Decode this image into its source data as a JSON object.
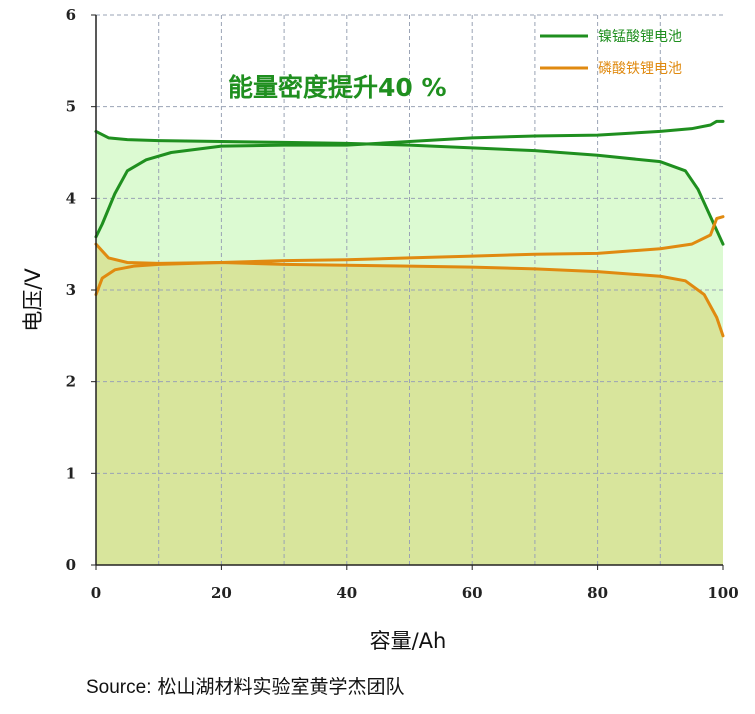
{
  "chart_data": {
    "type": "line",
    "xlabel": "容量/Ah",
    "ylabel": "电压/V",
    "xlim": [
      0,
      100
    ],
    "ylim": [
      0,
      6
    ],
    "x_ticks": [
      0,
      20,
      40,
      60,
      80,
      100
    ],
    "y_ticks": [
      0,
      1,
      2,
      3,
      4,
      5,
      6
    ],
    "grid": true,
    "legend_position": "top-right",
    "annotation": "能量密度提升40 %",
    "series": [
      {
        "name": "镍锰酸锂电池",
        "color": "#1f8f1f",
        "fill": "#dcfad2",
        "charge": {
          "x": [
            0,
            1,
            3,
            5,
            8,
            12,
            20,
            30,
            40,
            50,
            60,
            70,
            80,
            90,
            95,
            98,
            99,
            100
          ],
          "y": [
            3.58,
            3.72,
            4.05,
            4.3,
            4.42,
            4.5,
            4.57,
            4.58,
            4.58,
            4.62,
            4.66,
            4.68,
            4.69,
            4.73,
            4.76,
            4.8,
            4.84,
            4.84
          ]
        },
        "discharge": {
          "x": [
            0,
            2,
            5,
            10,
            20,
            30,
            40,
            50,
            60,
            70,
            80,
            90,
            94,
            96,
            98,
            100
          ],
          "y": [
            4.73,
            4.66,
            4.64,
            4.63,
            4.62,
            4.61,
            4.6,
            4.58,
            4.55,
            4.52,
            4.47,
            4.4,
            4.3,
            4.1,
            3.8,
            3.5
          ]
        }
      },
      {
        "name": "磷酸铁锂电池",
        "color": "#e08a10",
        "fill": "#d8e59c",
        "charge": {
          "x": [
            0,
            1,
            3,
            6,
            10,
            20,
            30,
            40,
            50,
            60,
            70,
            80,
            90,
            95,
            98,
            99,
            100
          ],
          "y": [
            2.95,
            3.13,
            3.22,
            3.26,
            3.28,
            3.3,
            3.32,
            3.33,
            3.35,
            3.37,
            3.39,
            3.4,
            3.45,
            3.5,
            3.6,
            3.78,
            3.8
          ]
        },
        "discharge": {
          "x": [
            0,
            2,
            5,
            10,
            20,
            30,
            40,
            50,
            60,
            70,
            80,
            90,
            94,
            97,
            99,
            100
          ],
          "y": [
            3.5,
            3.35,
            3.3,
            3.29,
            3.3,
            3.28,
            3.27,
            3.26,
            3.25,
            3.23,
            3.2,
            3.15,
            3.1,
            2.95,
            2.7,
            2.5
          ]
        }
      }
    ]
  },
  "source": {
    "label": "Source:",
    "text": "松山湖材料实验室黄学杰团队"
  }
}
